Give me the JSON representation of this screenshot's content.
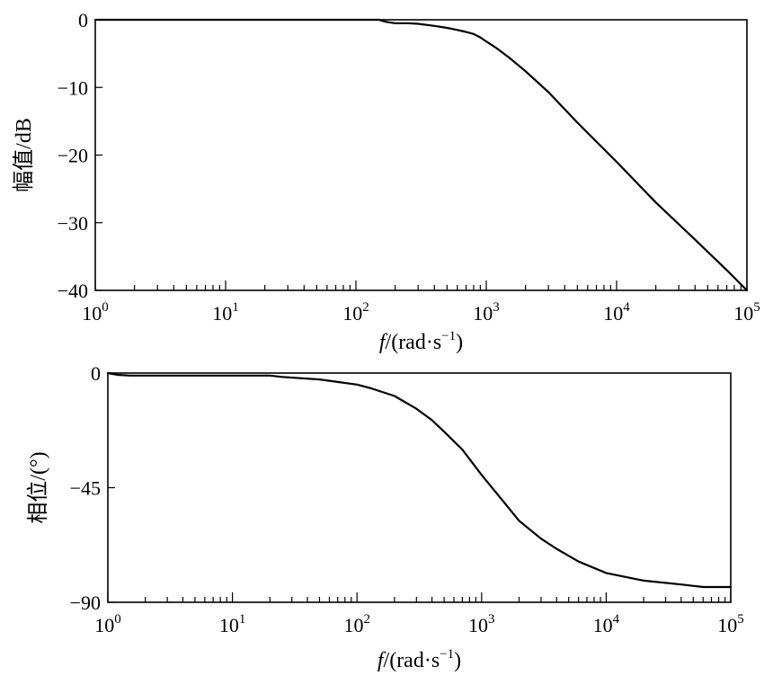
{
  "chart_data": [
    {
      "type": "line",
      "id": "magnitude",
      "xscale": "log",
      "xlim": [
        1,
        100000
      ],
      "ylim": [
        -40,
        0
      ],
      "ylabel": "幅值/dB",
      "xlabel": {
        "italic": "f",
        "main": "/(rad·s",
        "sup": "−1",
        "close": ")"
      },
      "xticks": [
        {
          "base": "10",
          "exp": "0",
          "value": 1
        },
        {
          "base": "10",
          "exp": "1",
          "value": 10
        },
        {
          "base": "10",
          "exp": "2",
          "value": 100
        },
        {
          "base": "10",
          "exp": "3",
          "value": 1000
        },
        {
          "base": "10",
          "exp": "4",
          "value": 10000
        },
        {
          "base": "10",
          "exp": "5",
          "value": 100000
        }
      ],
      "yticks": [
        {
          "label": "0",
          "value": 0
        },
        {
          "label": "−10",
          "value": -10
        },
        {
          "label": "−20",
          "value": -20
        },
        {
          "label": "−30",
          "value": -30
        },
        {
          "label": "−40",
          "value": -40
        }
      ],
      "grid": false,
      "series": [
        {
          "x": [
            1,
            10,
            100,
            150,
            170,
            200,
            250,
            300,
            400,
            500,
            600,
            700,
            800,
            900,
            1000,
            1200,
            1500,
            2000,
            3000,
            5000,
            7000,
            10000,
            20000,
            40000,
            70000,
            100000
          ],
          "y": [
            0,
            0,
            0,
            0,
            -0.3,
            -0.5,
            -0.5,
            -0.6,
            -0.9,
            -1.2,
            -1.5,
            -1.8,
            -2.1,
            -2.6,
            -3.2,
            -4.2,
            -5.6,
            -7.6,
            -10.7,
            -15.2,
            -18,
            -21,
            -27,
            -32.5,
            -37,
            -40
          ]
        }
      ]
    },
    {
      "type": "line",
      "id": "phase",
      "xscale": "log",
      "xlim": [
        1,
        100000
      ],
      "ylim": [
        -90,
        0
      ],
      "ylabel": "相位/(°)",
      "xlabel": {
        "italic": "f",
        "main": "/(rad·s",
        "sup": "−1",
        "close": ")"
      },
      "xticks": [
        {
          "base": "10",
          "exp": "0",
          "value": 1
        },
        {
          "base": "10",
          "exp": "1",
          "value": 10
        },
        {
          "base": "10",
          "exp": "2",
          "value": 100
        },
        {
          "base": "10",
          "exp": "3",
          "value": 1000
        },
        {
          "base": "10",
          "exp": "4",
          "value": 10000
        },
        {
          "base": "10",
          "exp": "5",
          "value": 100000
        }
      ],
      "yticks": [
        {
          "label": "0",
          "value": 0
        },
        {
          "label": "−45",
          "value": -45
        },
        {
          "label": "−90",
          "value": -90
        }
      ],
      "grid": false,
      "series": [
        {
          "x": [
            1,
            1.2,
            1.5,
            2,
            5,
            10,
            20,
            25,
            35,
            50,
            70,
            100,
            130,
            200,
            300,
            400,
            500,
            700,
            1000,
            1500,
            2000,
            3000,
            4000,
            6000,
            10000,
            20000,
            40000,
            60000,
            100000
          ],
          "y": [
            0,
            -0.7,
            -1,
            -1,
            -1,
            -1,
            -1,
            -1.5,
            -2,
            -2.5,
            -3.5,
            -4.5,
            -6,
            -9,
            -14,
            -18.5,
            -23,
            -30,
            -40,
            -50.5,
            -58,
            -65,
            -69,
            -74,
            -78.5,
            -81.5,
            -83,
            -84,
            -84
          ]
        }
      ]
    }
  ]
}
